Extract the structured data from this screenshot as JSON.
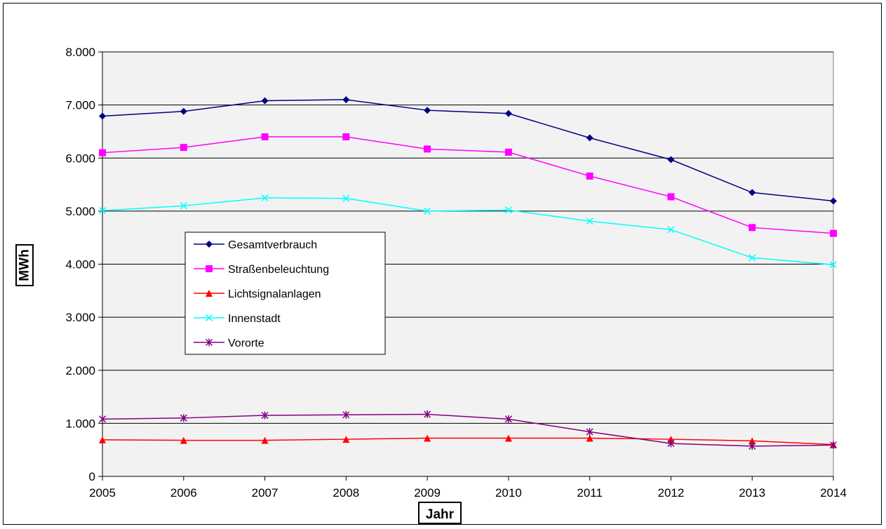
{
  "chart_data": {
    "type": "line",
    "title": "",
    "xlabel": "Jahr",
    "ylabel": "MWh",
    "categories": [
      "2005",
      "2006",
      "2007",
      "2008",
      "2009",
      "2010",
      "2011",
      "2012",
      "2013",
      "2014"
    ],
    "y_ticks": [
      "0",
      "1.000",
      "2.000",
      "3.000",
      "4.000",
      "5.000",
      "6.000",
      "7.000",
      "8.000"
    ],
    "ylim": [
      0,
      8000
    ],
    "grid": "horizontal",
    "legend_position": "center-left",
    "plot_background": "#f2f2f2",
    "series": [
      {
        "name": "Gesamtverbrauch",
        "color": "#000080",
        "marker": "diamond",
        "values": [
          6790,
          6880,
          7080,
          7100,
          6900,
          6840,
          6380,
          5970,
          5350,
          5190
        ]
      },
      {
        "name": "Straßenbeleuchtung",
        "color": "#ff00ff",
        "marker": "square",
        "values": [
          6100,
          6200,
          6400,
          6400,
          6170,
          6110,
          5660,
          5270,
          4690,
          4580
        ]
      },
      {
        "name": "Lichtsignalanlagen",
        "color": "#ff0000",
        "marker": "triangle",
        "values": [
          690,
          680,
          680,
          700,
          720,
          720,
          720,
          700,
          670,
          600
        ]
      },
      {
        "name": "Innenstadt",
        "color": "#00ffff",
        "marker": "x",
        "values": [
          5010,
          5100,
          5250,
          5240,
          5000,
          5020,
          4810,
          4650,
          4120,
          3990
        ]
      },
      {
        "name": "Vororte",
        "color": "#800080",
        "marker": "star",
        "values": [
          1080,
          1100,
          1150,
          1160,
          1170,
          1080,
          840,
          620,
          570,
          590
        ]
      }
    ]
  }
}
